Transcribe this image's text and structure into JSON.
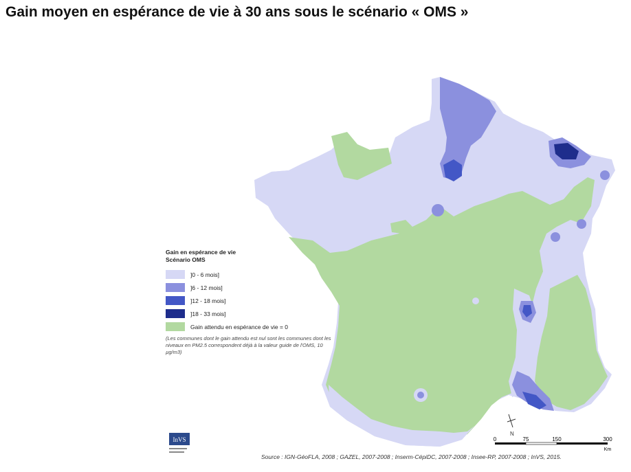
{
  "title": "Gain moyen en espérance de vie à 30 ans sous le scénario « OMS »",
  "legend": {
    "title_line1": "Gain en espérance de vie",
    "title_line2": "Scénario OMS",
    "classes": [
      {
        "label": "]0 - 6 mois]",
        "color": "#d6d8f5"
      },
      {
        "label": "]6 - 12 mois]",
        "color": "#8b90de"
      },
      {
        "label": "]12 - 18 mois]",
        "color": "#4357c6"
      },
      {
        "label": "]18 - 33 mois]",
        "color": "#1e2d8c"
      }
    ],
    "zero": {
      "label": "Gain attendu en espérance de vie = 0",
      "color": "#b2d9a0"
    },
    "note": "(Les communes dont le gain attendu est nul sont les communes dont les niveaux en PM2.5 correspondent déjà à la valeur guide de l'OMS, 10 µg/m3)"
  },
  "scale": {
    "t0": "0",
    "t1": "75",
    "t2": "150",
    "t3": "300",
    "unit": "Km"
  },
  "north": "N",
  "source": "Source : IGN-GéoFLA, 2008 ; GAZEL, 2007-2008 ; Inserm-CépiDC, 2007-2008 ; Insee-RP, 2007-2008 ; InVS, 2015.",
  "logo_text": "InVS"
}
